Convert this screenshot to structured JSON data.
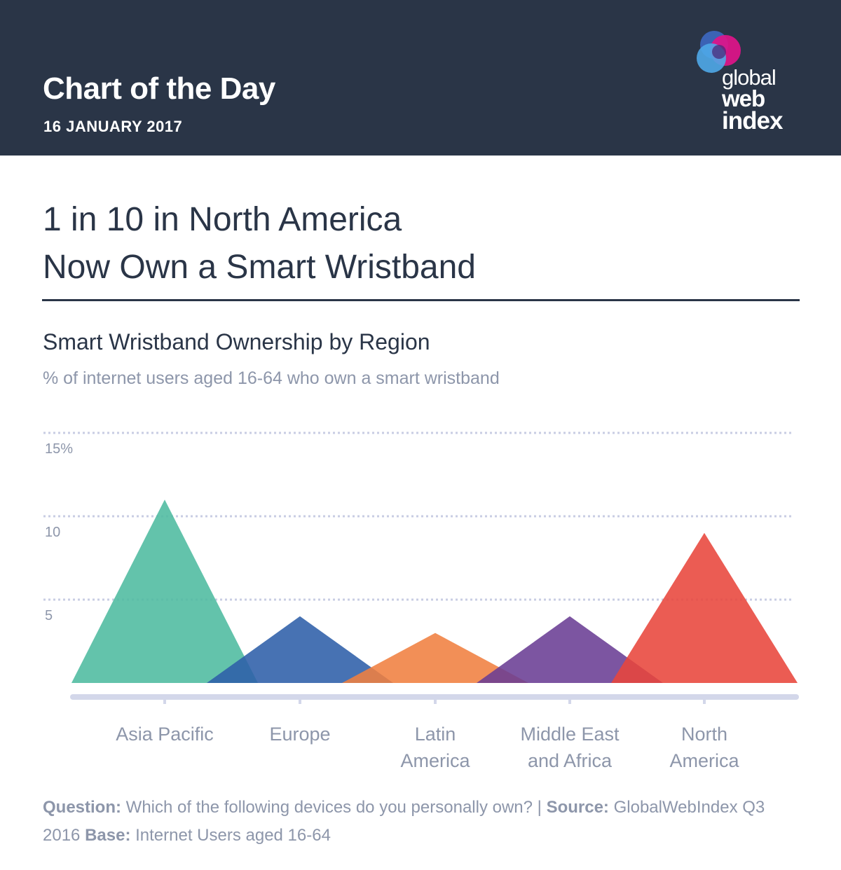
{
  "header": {
    "title": "Chart of the Day",
    "date": "16 JANUARY 2017",
    "logo": {
      "line1": "global",
      "line2": "web",
      "line3": "index"
    }
  },
  "headline": {
    "line1": "1 in 10 in North America",
    "line2": "Now Own a Smart Wristband"
  },
  "colors": {
    "header_bg": "#2a3547",
    "asia_pacific": "#4dbb9f",
    "europe": "#2e5ea8",
    "latin_america": "#f08040",
    "middle_east_africa": "#6a3d94",
    "north_america": "#e8463b",
    "axis": "#d3d7ea",
    "grid": "#c8cde3"
  },
  "chart_data": {
    "type": "area",
    "title": "Smart Wristband Ownership by Region",
    "subtitle": "% of internet users aged 16-64 who own a smart wristband",
    "ylim": [
      0,
      15
    ],
    "yticks": [
      {
        "value": 15,
        "label": "15%"
      },
      {
        "value": 10,
        "label": "10"
      },
      {
        "value": 5,
        "label": "5"
      }
    ],
    "categories": [
      "Asia Pacific",
      "Europe",
      "Latin America",
      "Middle East and Africa",
      "North America"
    ],
    "category_labels": [
      [
        "Asia Pacific"
      ],
      [
        "Europe"
      ],
      [
        "Latin",
        "America"
      ],
      [
        "Middle East",
        "and Africa"
      ],
      [
        "North",
        "America"
      ]
    ],
    "values": [
      11,
      4,
      3,
      4,
      9
    ]
  },
  "footer": {
    "question_label": "Question:",
    "question_text": " Which of the following devices do you personally own?  |  ",
    "source_label": "Source:",
    "source_text": " GlobalWebIndex Q3 2016  ",
    "base_label": "Base:",
    "base_text": " Internet Users aged 16-64"
  }
}
